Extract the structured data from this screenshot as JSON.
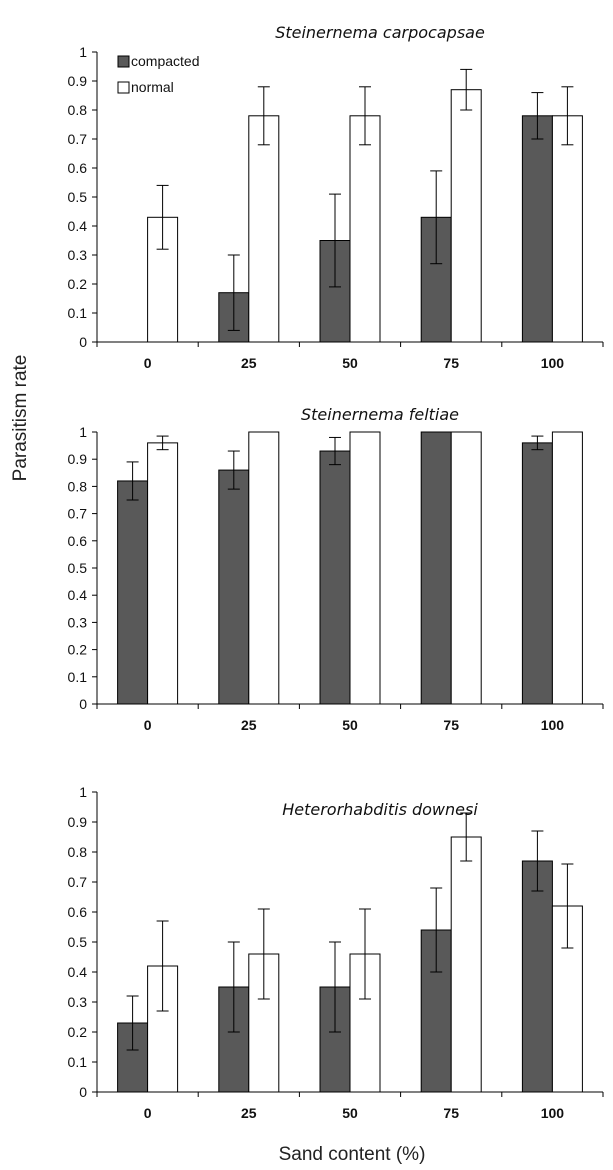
{
  "colors": {
    "compacted": "#595959",
    "normal": "#ffffff",
    "outline": "#000000"
  },
  "ylabel": "Parasitism rate",
  "xlabel": "Sand content (%)",
  "legend": {
    "placement": "top-left",
    "entries": [
      "compacted",
      "normal"
    ]
  },
  "chart_data": [
    {
      "type": "bar",
      "title": "Steinernema carpocapsae",
      "categories": [
        "0",
        "25",
        "50",
        "75",
        "100"
      ],
      "ylim": [
        0,
        1
      ],
      "yticks": [
        "0",
        "0.1",
        "0.2",
        "0.3",
        "0.4",
        "0.5",
        "0.6",
        "0.7",
        "0.8",
        "0.9",
        "1"
      ],
      "series": [
        {
          "name": "compacted",
          "values": [
            0.0,
            0.17,
            0.35,
            0.43,
            0.78
          ],
          "errors": [
            0.0,
            0.13,
            0.16,
            0.16,
            0.08
          ]
        },
        {
          "name": "normal",
          "values": [
            0.43,
            0.78,
            0.78,
            0.87,
            0.78
          ],
          "errors": [
            0.11,
            0.1,
            0.1,
            0.07,
            0.1
          ]
        }
      ]
    },
    {
      "type": "bar",
      "title": "Steinernema feltiae",
      "categories": [
        "0",
        "25",
        "50",
        "75",
        "100"
      ],
      "ylim": [
        0,
        1
      ],
      "yticks": [
        "0",
        "0.1",
        "0.2",
        "0.3",
        "0.4",
        "0.5",
        "0.6",
        "0.7",
        "0.8",
        "0.9",
        "1"
      ],
      "series": [
        {
          "name": "compacted",
          "values": [
            0.82,
            0.86,
            0.93,
            1.0,
            0.96
          ],
          "errors": [
            0.07,
            0.07,
            0.05,
            0.0,
            0.025
          ]
        },
        {
          "name": "normal",
          "values": [
            0.96,
            1.0,
            1.0,
            1.0,
            1.0
          ],
          "errors": [
            0.025,
            0.0,
            0.0,
            0.0,
            0.0
          ]
        }
      ]
    },
    {
      "type": "bar",
      "title": "Heterorhabditis downesi",
      "categories": [
        "0",
        "25",
        "50",
        "75",
        "100"
      ],
      "ylim": [
        0,
        1
      ],
      "yticks": [
        "0",
        "0.1",
        "0.2",
        "0.3",
        "0.4",
        "0.5",
        "0.6",
        "0.7",
        "0.8",
        "0.9",
        "1"
      ],
      "series": [
        {
          "name": "compacted",
          "values": [
            0.23,
            0.35,
            0.35,
            0.54,
            0.77
          ],
          "errors": [
            0.09,
            0.15,
            0.15,
            0.14,
            0.1
          ]
        },
        {
          "name": "normal",
          "values": [
            0.42,
            0.46,
            0.46,
            0.85,
            0.62
          ],
          "errors": [
            0.15,
            0.15,
            0.15,
            0.08,
            0.14
          ]
        }
      ]
    }
  ]
}
